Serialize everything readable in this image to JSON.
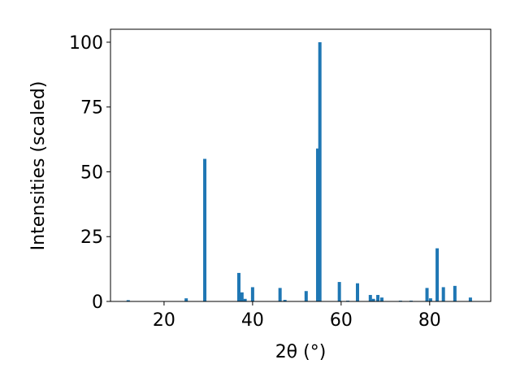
{
  "chart_data": {
    "type": "bar",
    "x_label": "2θ (°)",
    "y_label": "Intensities (scaled)",
    "color": "#1f77b4",
    "x": [
      11.9,
      25.0,
      29.2,
      36.9,
      37.6,
      38.3,
      40.0,
      46.2,
      47.3,
      52.1,
      54.7,
      55.2,
      59.6,
      61.5,
      63.7,
      66.6,
      67.3,
      68.3,
      69.2,
      73.4,
      75.8,
      79.4,
      80.2,
      81.7,
      83.1,
      85.7,
      89.2
    ],
    "values": [
      0.5,
      1.2,
      55,
      11,
      3.5,
      1,
      5.5,
      5.2,
      0.6,
      4,
      59,
      100,
      7.5,
      0.3,
      7,
      2.5,
      1,
      2.5,
      1.5,
      0.3,
      0.3,
      5.2,
      1.2,
      20.5,
      5.5,
      6,
      1.5
    ],
    "xlim": [
      7.9,
      93.8
    ],
    "ylim": [
      0,
      105
    ],
    "xticks": [
      20,
      40,
      60,
      80
    ],
    "yticks": [
      0,
      25,
      50,
      75,
      100
    ]
  }
}
